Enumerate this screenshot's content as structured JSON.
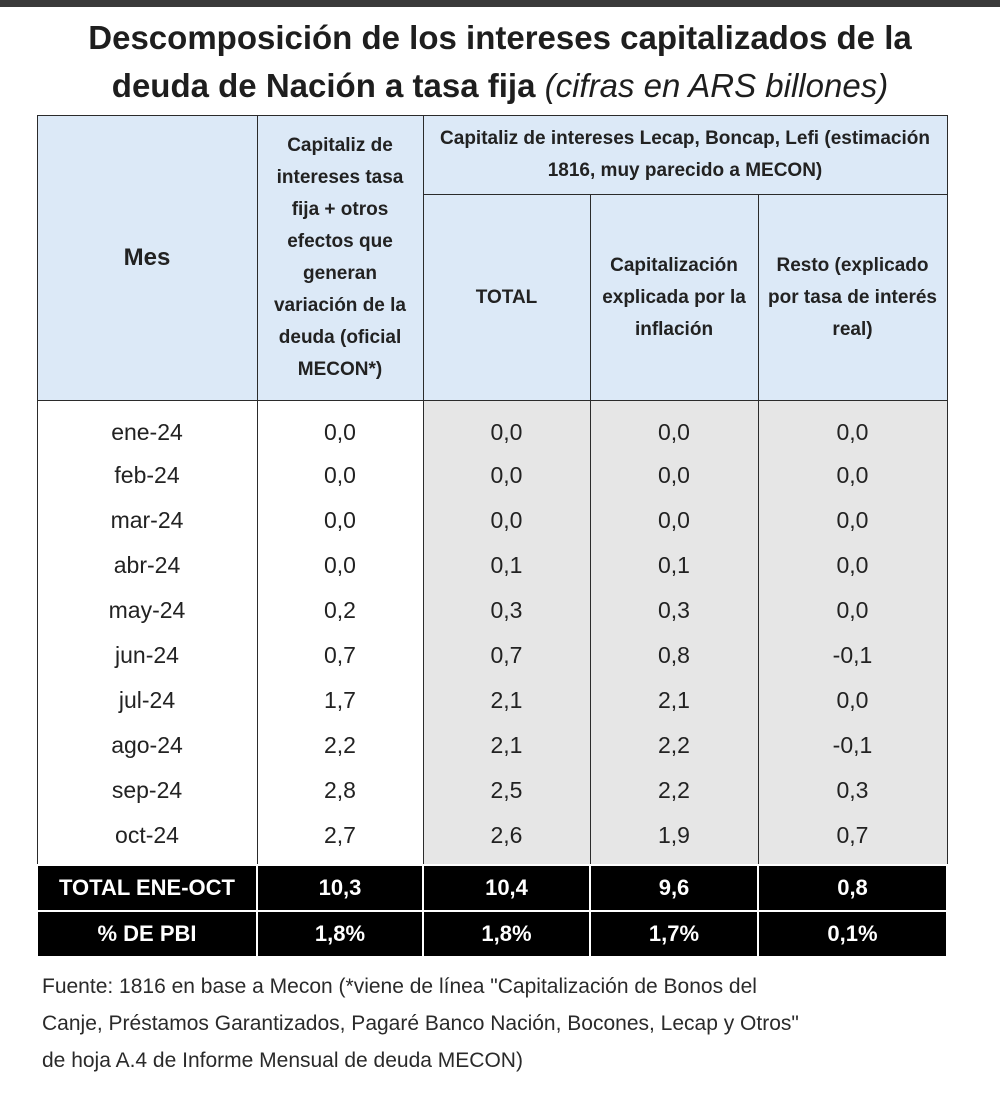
{
  "title": {
    "line1": "Descomposición de los intereses capitalizados de la",
    "line2_main": "deuda de Nación a tasa fija ",
    "line2_sub": "(cifras en ARS billones)"
  },
  "headers": {
    "mes": "Mes",
    "oficial": "Capitaliz de intereses tasa fija + otros efectos que generan variación de la deuda (oficial MECON*)",
    "group": "Capitaliz de intereses Lecap, Boncap, Lefi (estimación 1816, muy parecido a MECON)",
    "total": "TOTAL",
    "inflacion": "Capitalización explicada por la inflación",
    "resto": "Resto (explicado por tasa de interés real)"
  },
  "rows": [
    {
      "mes": "ene-24",
      "oficial": "0,0",
      "total": "0,0",
      "inflacion": "0,0",
      "resto": "0,0"
    },
    {
      "mes": "feb-24",
      "oficial": "0,0",
      "total": "0,0",
      "inflacion": "0,0",
      "resto": "0,0"
    },
    {
      "mes": "mar-24",
      "oficial": "0,0",
      "total": "0,0",
      "inflacion": "0,0",
      "resto": "0,0"
    },
    {
      "mes": "abr-24",
      "oficial": "0,0",
      "total": "0,1",
      "inflacion": "0,1",
      "resto": "0,0"
    },
    {
      "mes": "may-24",
      "oficial": "0,2",
      "total": "0,3",
      "inflacion": "0,3",
      "resto": "0,0"
    },
    {
      "mes": "jun-24",
      "oficial": "0,7",
      "total": "0,7",
      "inflacion": "0,8",
      "resto": "-0,1"
    },
    {
      "mes": "jul-24",
      "oficial": "1,7",
      "total": "2,1",
      "inflacion": "2,1",
      "resto": "0,0"
    },
    {
      "mes": "ago-24",
      "oficial": "2,2",
      "total": "2,1",
      "inflacion": "2,2",
      "resto": "-0,1"
    },
    {
      "mes": "sep-24",
      "oficial": "2,8",
      "total": "2,5",
      "inflacion": "2,2",
      "resto": "0,3"
    },
    {
      "mes": "oct-24",
      "oficial": "2,7",
      "total": "2,6",
      "inflacion": "1,9",
      "resto": "0,7"
    }
  ],
  "totals": [
    {
      "label": "TOTAL ENE-OCT",
      "oficial": "10,3",
      "total": "10,4",
      "inflacion": "9,6",
      "resto": "0,8"
    },
    {
      "label": "% DE PBI",
      "oficial": "1,8%",
      "total": "1,8%",
      "inflacion": "1,7%",
      "resto": "0,1%"
    }
  ],
  "source": {
    "line1": "Fuente: 1816 en base a Mecon (*viene de línea \"Capitalización de Bonos del",
    "line2": "Canje, Préstamos Garantizados, Pagaré Banco Nación, Bocones, Lecap y Otros\"",
    "line3": "de hoja A.4 de Informe Mensual de deuda MECON)"
  }
}
